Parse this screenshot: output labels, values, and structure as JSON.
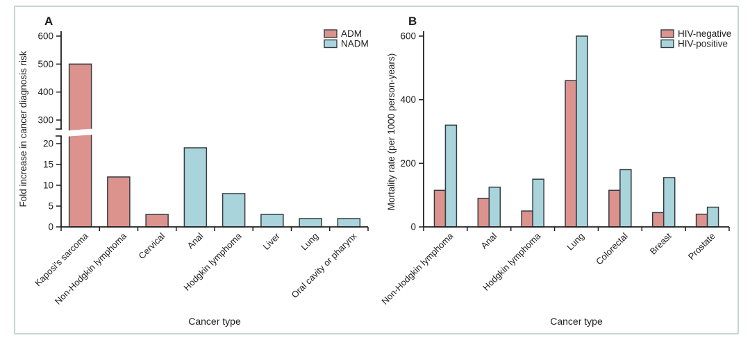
{
  "figure": {
    "background": "#ffffff",
    "border_color": "#c4d6d0"
  },
  "style": {
    "bar_border": "#333b42",
    "axis_color": "#1d1d1d",
    "text_color": "#1d1d1d",
    "figure_border": "#c4d6d0",
    "background": "#ffffff",
    "adm_pink": "#dc938d",
    "nadm_teal": "#a9d4dc"
  },
  "chart_data": [
    {
      "type": "bar",
      "panel_label": "A",
      "xlabel": "Cancer type",
      "ylabel": "Fold increase in cancer diagnosis risk",
      "broken_y_axis": true,
      "y_segments": [
        {
          "ticks": [
            0,
            5,
            10,
            15,
            20
          ],
          "range": [
            0,
            22
          ]
        },
        {
          "ticks": [
            300,
            400,
            500,
            600
          ],
          "range": [
            268,
            617
          ]
        }
      ],
      "categories": [
        "Kaposi's sarcoma",
        "Non-Hodgkin lymphoma",
        "Cervical",
        "Anal",
        "Hodgkin lymphoma",
        "Liver",
        "Lung",
        "Oral cavity or pharynx"
      ],
      "values": [
        500,
        12,
        3,
        19,
        8,
        3,
        2,
        2
      ],
      "bar_series": [
        "ADM",
        "ADM",
        "ADM",
        "NADM",
        "NADM",
        "NADM",
        "NADM",
        "NADM"
      ],
      "legend": [
        {
          "label": "ADM",
          "color": "#dc938d"
        },
        {
          "label": "NADM",
          "color": "#a9d4dc"
        }
      ],
      "legend_position": "top-right",
      "grid": false
    },
    {
      "type": "bar",
      "panel_label": "B",
      "xlabel": "Cancer type",
      "ylabel": "Mortality rate (per 1000 person-years)",
      "ylim": [
        0,
        600
      ],
      "yticks": [
        0,
        200,
        400,
        600
      ],
      "categories": [
        "Non-Hodgkin lymphoma",
        "Anal",
        "Hodgkin lymphoma",
        "Lung",
        "Colorectal",
        "Breast",
        "Prostate"
      ],
      "series": [
        {
          "name": "HIV-negative",
          "color": "#dc938d",
          "values": [
            115,
            90,
            50,
            460,
            115,
            45,
            40
          ]
        },
        {
          "name": "HIV-positive",
          "color": "#a9d4dc",
          "values": [
            320,
            125,
            150,
            600,
            180,
            155,
            62
          ]
        }
      ],
      "legend_position": "top-right",
      "grid": false
    }
  ]
}
